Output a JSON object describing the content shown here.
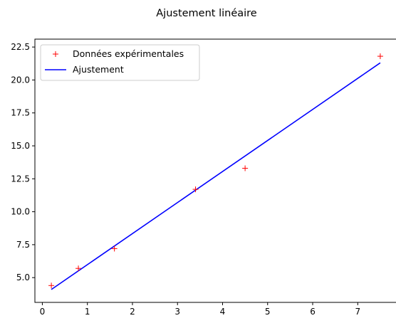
{
  "chart_data": {
    "type": "scatter",
    "title": "Ajustement linéaire",
    "xlabel": "",
    "ylabel": "",
    "xlim": [
      -0.165,
      7.865
    ],
    "ylim": [
      3.12,
      23.1
    ],
    "xticks": [
      0,
      1,
      2,
      3,
      4,
      5,
      6,
      7
    ],
    "yticks": [
      5.0,
      7.5,
      10.0,
      12.5,
      15.0,
      17.5,
      20.0,
      22.5
    ],
    "xtick_labels": [
      "0",
      "1",
      "2",
      "3",
      "4",
      "5",
      "6",
      "7"
    ],
    "ytick_labels": [
      "5.0",
      "7.5",
      "10.0",
      "12.5",
      "15.0",
      "17.5",
      "20.0",
      "22.5"
    ],
    "grid": false,
    "legend_position": "top-left",
    "series": [
      {
        "name": "Données expérimentales",
        "kind": "scatter",
        "marker": "+",
        "color": "#ff0000",
        "x": [
          0.2,
          0.8,
          1.6,
          3.4,
          4.5,
          7.5
        ],
        "y": [
          4.4,
          5.7,
          7.2,
          11.7,
          13.3,
          21.8
        ]
      },
      {
        "name": "Ajustement",
        "kind": "line",
        "color": "#0000ff",
        "x": [
          0.2,
          7.5
        ],
        "y": [
          4.1,
          21.3
        ]
      }
    ]
  }
}
